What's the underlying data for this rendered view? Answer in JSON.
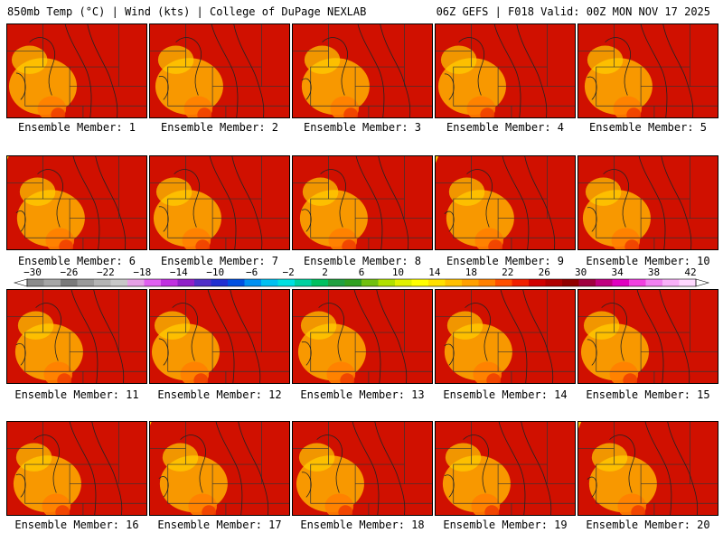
{
  "header": {
    "left": "850mb Temp (°C) | Wind (kts) | College of DuPage NEXLAB",
    "right": "06Z GEFS | F018 Valid: 00Z MON NOV 17 2025"
  },
  "panels": [
    {
      "label": "Ensemble Member: 1"
    },
    {
      "label": "Ensemble Member: 2"
    },
    {
      "label": "Ensemble Member: 3"
    },
    {
      "label": "Ensemble Member: 4"
    },
    {
      "label": "Ensemble Member: 5"
    },
    {
      "label": "Ensemble Member: 6"
    },
    {
      "label": "Ensemble Member: 7"
    },
    {
      "label": "Ensemble Member: 8"
    },
    {
      "label": "Ensemble Member: 9"
    },
    {
      "label": "Ensemble Member: 10"
    },
    {
      "label": "Ensemble Member: 11"
    },
    {
      "label": "Ensemble Member: 12"
    },
    {
      "label": "Ensemble Member: 13"
    },
    {
      "label": "Ensemble Member: 14"
    },
    {
      "label": "Ensemble Member: 15"
    },
    {
      "label": "Ensemble Member: 16"
    },
    {
      "label": "Ensemble Member: 17"
    },
    {
      "label": "Ensemble Member: 18"
    },
    {
      "label": "Ensemble Member: 19"
    },
    {
      "label": "Ensemble Member: 20"
    }
  ],
  "colorbar": {
    "ticks": [
      "−30",
      "−26",
      "−22",
      "−18",
      "−14",
      "−10",
      "−6",
      "−2",
      "2",
      "6",
      "10",
      "14",
      "18",
      "22",
      "26",
      "30",
      "34",
      "38",
      "42"
    ],
    "colors": [
      "#8c8c8c",
      "#a6a6a6",
      "#7a7a7a",
      "#9a9a9a",
      "#b4b4b4",
      "#c8c8c8",
      "#e6a0e6",
      "#e060f0",
      "#c030e0",
      "#9020c8",
      "#5030c8",
      "#2030d0",
      "#0050e0",
      "#0090f0",
      "#00c0f0",
      "#00e0e0",
      "#00d0a0",
      "#00c060",
      "#20a040",
      "#30a020",
      "#70c010",
      "#b0e000",
      "#e0f000",
      "#ffff00",
      "#ffe000",
      "#ffc000",
      "#ffa000",
      "#ff8000",
      "#ff5000",
      "#f02000",
      "#d00000",
      "#b00000",
      "#900000",
      "#a00040",
      "#c00080",
      "#e000c0",
      "#f040e0",
      "#f080f0",
      "#f8b0f8",
      "#ffd8ff"
    ]
  },
  "colors": {
    "background": "#ffffff",
    "frame": "#000000"
  }
}
